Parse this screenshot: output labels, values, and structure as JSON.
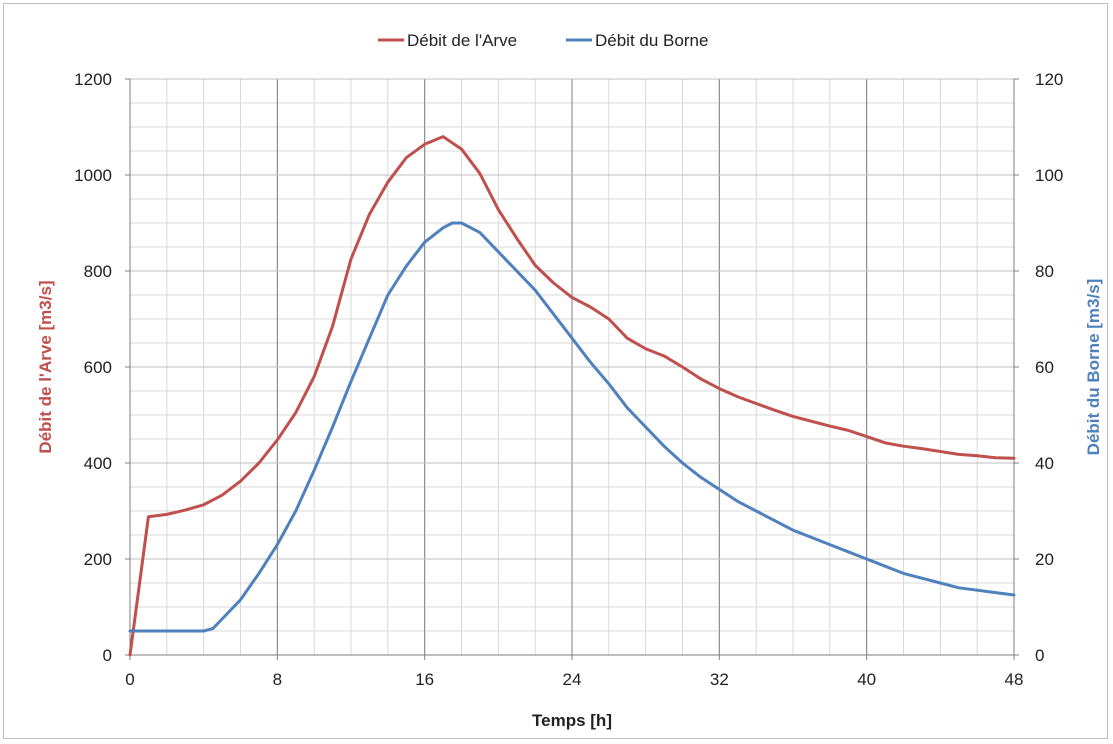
{
  "chart_data": {
    "type": "line",
    "title": "",
    "xlabel": "Temps [h]",
    "ylabel_left": "Débit de l'Arve [m3/s]",
    "ylabel_right": "Débit du Borne [m3/s]",
    "xlim": [
      0,
      48
    ],
    "ylim_left": [
      0,
      1200
    ],
    "ylim_right": [
      0,
      120
    ],
    "x_ticks": [
      "0",
      "8",
      "16",
      "24",
      "32",
      "40",
      "48"
    ],
    "y_ticks_left": [
      "0",
      "200",
      "400",
      "600",
      "800",
      "1000",
      "1200"
    ],
    "y_ticks_right": [
      "0",
      "20",
      "40",
      "60",
      "80",
      "100",
      "120"
    ],
    "grid": true,
    "legend_position": "top",
    "series": [
      {
        "name": "Débit de l'Arve",
        "axis": "left",
        "color": "#c0504d",
        "points": [
          [
            0,
            0
          ],
          [
            1,
            288
          ],
          [
            2,
            293
          ],
          [
            3,
            302
          ],
          [
            4,
            313
          ],
          [
            5,
            333
          ],
          [
            6,
            362
          ],
          [
            7,
            400
          ],
          [
            8,
            448
          ],
          [
            9,
            505
          ],
          [
            10,
            580
          ],
          [
            11,
            685
          ],
          [
            12,
            825
          ],
          [
            13,
            918
          ],
          [
            14,
            985
          ],
          [
            15,
            1036
          ],
          [
            16,
            1064
          ],
          [
            17,
            1080
          ],
          [
            18,
            1054
          ],
          [
            19,
            1003
          ],
          [
            20,
            928
          ],
          [
            21,
            868
          ],
          [
            22,
            812
          ],
          [
            23,
            775
          ],
          [
            24,
            745
          ],
          [
            25,
            725
          ],
          [
            26,
            700
          ],
          [
            27,
            660
          ],
          [
            28,
            638
          ],
          [
            29,
            623
          ],
          [
            30,
            600
          ],
          [
            31,
            575
          ],
          [
            32,
            555
          ],
          [
            33,
            538
          ],
          [
            34,
            524
          ],
          [
            35,
            510
          ],
          [
            36,
            497
          ],
          [
            37,
            487
          ],
          [
            38,
            477
          ],
          [
            39,
            468
          ],
          [
            40,
            455
          ],
          [
            41,
            442
          ],
          [
            42,
            435
          ],
          [
            43,
            430
          ],
          [
            44,
            424
          ],
          [
            45,
            418
          ],
          [
            46,
            415
          ],
          [
            47,
            411
          ],
          [
            48,
            410
          ]
        ]
      },
      {
        "name": "Débit du Borne",
        "axis": "right",
        "color": "#4f81bd",
        "points": [
          [
            0,
            5
          ],
          [
            1,
            5
          ],
          [
            2,
            5
          ],
          [
            3,
            5
          ],
          [
            4,
            5
          ],
          [
            4.5,
            5.5
          ],
          [
            5,
            7.5
          ],
          [
            6,
            11.5
          ],
          [
            7,
            17
          ],
          [
            8,
            23
          ],
          [
            9,
            30
          ],
          [
            10,
            38.5
          ],
          [
            11,
            47.5
          ],
          [
            12,
            57
          ],
          [
            13,
            66
          ],
          [
            14,
            75
          ],
          [
            15,
            81
          ],
          [
            16,
            86
          ],
          [
            17,
            89
          ],
          [
            17.5,
            90
          ],
          [
            18,
            90
          ],
          [
            19,
            88
          ],
          [
            20,
            84
          ],
          [
            21,
            80
          ],
          [
            22,
            76
          ],
          [
            23,
            71
          ],
          [
            24,
            66
          ],
          [
            25,
            61
          ],
          [
            26,
            56.5
          ],
          [
            27,
            51.5
          ],
          [
            28,
            47.5
          ],
          [
            29,
            43.5
          ],
          [
            30,
            40
          ],
          [
            31,
            37
          ],
          [
            32,
            34.5
          ],
          [
            33,
            32
          ],
          [
            34,
            30
          ],
          [
            35,
            28
          ],
          [
            36,
            26
          ],
          [
            37,
            24.5
          ],
          [
            38,
            23
          ],
          [
            39,
            21.5
          ],
          [
            40,
            20
          ],
          [
            41,
            18.5
          ],
          [
            42,
            17
          ],
          [
            43,
            16
          ],
          [
            44,
            15
          ],
          [
            45,
            14
          ],
          [
            46,
            13.5
          ],
          [
            47,
            13
          ],
          [
            48,
            12.5
          ]
        ]
      }
    ]
  }
}
